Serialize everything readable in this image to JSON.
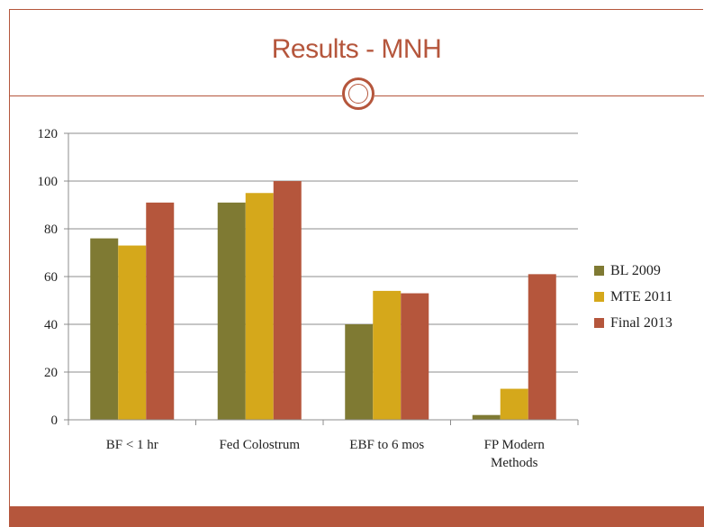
{
  "slide": {
    "title": "Results - MNH"
  },
  "colors": {
    "accent": "#b5563c",
    "series": [
      "#7f7a33",
      "#d5a81b",
      "#b5563c"
    ],
    "gridline": "#8c8c8c"
  },
  "chart_data": {
    "type": "bar",
    "title": "",
    "xlabel": "",
    "ylabel": "",
    "categories": [
      [
        "BF < 1 hr"
      ],
      [
        "Fed Colostrum"
      ],
      [
        "EBF to 6 mos"
      ],
      [
        "FP Modern",
        "Methods"
      ]
    ],
    "series": [
      {
        "name": "BL 2009",
        "values": [
          76,
          91,
          40,
          2
        ]
      },
      {
        "name": "MTE 2011",
        "values": [
          73,
          95,
          54,
          13
        ]
      },
      {
        "name": "Final 2013",
        "values": [
          91,
          100,
          53,
          61
        ]
      }
    ],
    "ylim": [
      0,
      120
    ],
    "yticks": [
      0,
      20,
      40,
      60,
      80,
      100,
      120
    ],
    "grid": true,
    "legend_position": "right"
  }
}
